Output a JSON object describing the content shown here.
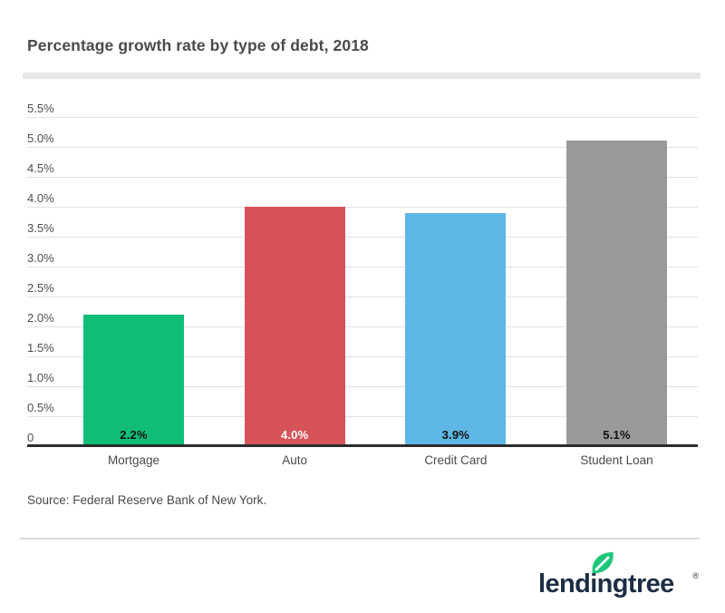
{
  "title": "Percentage growth rate by type of debt, 2018",
  "chart_data": {
    "type": "bar",
    "title": "Percentage growth rate by type of debt, 2018",
    "categories": [
      "Mortgage",
      "Auto",
      "Credit Card",
      "Student Loan"
    ],
    "values": [
      2.2,
      4.0,
      3.9,
      5.1
    ],
    "value_labels": [
      "2.2%",
      "4.0%",
      "3.9%",
      "5.1%"
    ],
    "bar_colors": [
      "#10bd77",
      "#d65459",
      "#5fb7e5",
      "#9a9a9a"
    ],
    "value_label_colors": [
      "#111111",
      "#ffffff",
      "#111111",
      "#111111"
    ],
    "xlabel": "",
    "ylabel": "",
    "ylim": [
      0,
      5.5
    ],
    "ytick_step": 0.5,
    "ytick_labels": [
      "0",
      "0.5%",
      "1.0%",
      "1.5%",
      "2.0%",
      "2.5%",
      "3.0%",
      "3.5%",
      "4.0%",
      "4.5%",
      "5.0%",
      "5.5%"
    ],
    "grid": true,
    "legend": false
  },
  "source": "Source: Federal Reserve Bank of New York.",
  "footer": {
    "logo_text": "lendingtree",
    "registered_mark": "®"
  },
  "colors": {
    "brand_green": "#10bd77",
    "bar_red": "#d65459",
    "bar_blue": "#5fb7e5",
    "bar_gray": "#9a9a9a",
    "logo_navy": "#1c2e45",
    "leaf_green": "#1fc77d",
    "axis_dark": "#2b2b2b",
    "grid_gray": "#e2e2e2",
    "text_gray": "#4a4a4a"
  }
}
